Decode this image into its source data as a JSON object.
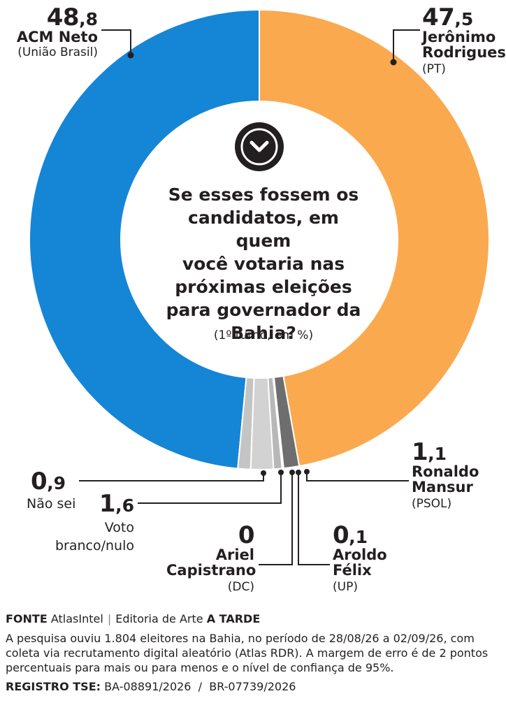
{
  "chart_data": {
    "type": "pie",
    "title": "Se esses fossem os candidatos, em quem você votaria nas próximas eleições para governador da Bahia?",
    "subtitle": "(1º turno, em %)",
    "slices": [
      {
        "int": "48",
        "dec": "8",
        "value": 48.8,
        "name": "ACM Neto",
        "party": "(União Brasil)",
        "color": "#1585d6"
      },
      {
        "int": "0",
        "dec": "9",
        "value": 0.9,
        "name": "Não sei",
        "party": "",
        "color": "#c4c4c4"
      },
      {
        "int": "1",
        "dec": "6",
        "value": 1.6,
        "name": "Voto branco/nulo",
        "party": "",
        "color": "#d2d2d2"
      },
      {
        "int": "0",
        "dec": "",
        "value": 0,
        "name": "Ariel Capistrano",
        "party": "(DC)",
        "color": "#b8b8b8"
      },
      {
        "int": "0",
        "dec": "1",
        "value": 0.1,
        "name": "Aroldo Félix",
        "party": "(UP)",
        "color": "#999999"
      },
      {
        "int": "1",
        "dec": "1",
        "value": 1.1,
        "name": "Ronaldo Mansur",
        "party": "(PSOL)",
        "color": "#6e6e6e"
      },
      {
        "int": "47",
        "dec": "5",
        "value": 47.5,
        "name": "Jerônimo Rodrigues",
        "party": "(PT)",
        "color": "#fba94e"
      }
    ]
  },
  "labels": {
    "acm_int": "48",
    "acm_dec": "8",
    "acm_name": "ACM Neto",
    "acm_party": "(União Brasil)",
    "jer_int": "47",
    "jer_dec": "5",
    "jer_name1": "Jerônimo",
    "jer_name2": "Rodrigues",
    "jer_party": "(PT)",
    "ron_int": "1",
    "ron_dec": "1",
    "ron_name1": "Ronaldo",
    "ron_name2": "Mansur",
    "ron_party": "(PSOL)",
    "nao_int": "0",
    "nao_dec": "9",
    "nao_name": "Não sei",
    "voto_int": "1",
    "voto_dec": "6",
    "voto_name1": "Voto",
    "voto_name2": "branco/nulo",
    "ariel_int": "0",
    "ariel_name1": "Ariel",
    "ariel_name2": "Capistrano",
    "ariel_party": "(DC)",
    "aroldo_int": "0",
    "aroldo_dec": "1",
    "aroldo_name1": "Aroldo",
    "aroldo_name2": "Félix",
    "aroldo_party": "(UP)",
    "decimal_sep": ","
  },
  "center": {
    "lines": [
      "Se esses fossem os",
      "candidatos, em quem",
      "você votaria nas",
      "próximas eleições",
      "para governador da",
      "Bahia?"
    ],
    "subtitle": "(1º turno, em %)",
    "icon": "chevron-down-icon"
  },
  "footer": {
    "fonte_label": "FONTE",
    "fonte_value": "AtlasIntel",
    "separator": "|",
    "editoria": "Editoria de Arte",
    "brand": "A TARDE",
    "note_lines": [
      "A pesquisa ouviu 1.804 eleitores na Bahia, no período de 28/08/26 a 02/09/26, com",
      "coleta via recrutamento digital aleatório (Atlas RDR). A margem de erro é de 2 pontos",
      "percentuais para mais ou para menos e o nível de confiança de 95%."
    ],
    "registro_label": "REGISTRO TSE:",
    "registro_value": "BA-08891/2026  /  BR-07739/2026"
  },
  "colors": {
    "blue": "#1585d6",
    "orange": "#fba94e",
    "dark": "#231f20",
    "line": "#231f20"
  }
}
